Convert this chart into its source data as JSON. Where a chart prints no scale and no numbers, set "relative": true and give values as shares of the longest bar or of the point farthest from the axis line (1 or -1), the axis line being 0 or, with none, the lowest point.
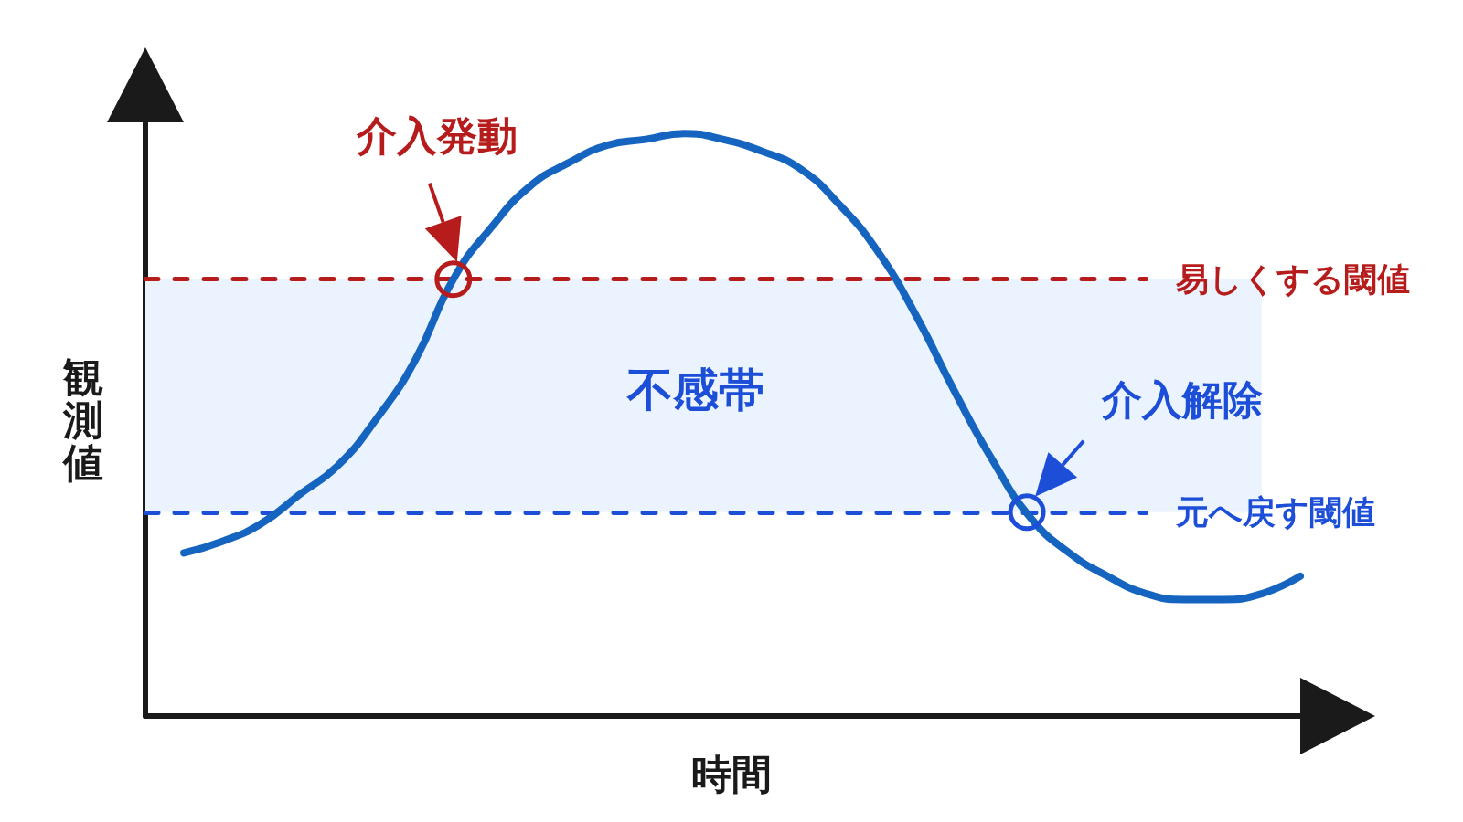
{
  "chart_data": {
    "type": "line",
    "relative": true,
    "xlabel": "時間",
    "ylabel": "観測値",
    "categories": [
      null,
      null,
      null,
      null,
      null,
      null,
      null,
      null,
      null,
      null,
      null,
      null,
      null,
      null,
      null,
      null,
      null,
      null,
      null,
      null,
      null,
      null,
      null,
      null,
      null,
      null,
      null,
      null,
      null,
      null,
      null
    ],
    "values": [
      null,
      0.28,
      0.3,
      0.33,
      0.38,
      0.43,
      0.51,
      0.61,
      0.75,
      0.84,
      0.91,
      0.95,
      0.98,
      0.99,
      1,
      0.99,
      0.97,
      0.94,
      0.88,
      0.8,
      0.69,
      0.56,
      0.44,
      0.34,
      0.28,
      0.24,
      0.21,
      0.2,
      0.2,
      0.21,
      0.24
    ],
    "color": "#1565c0",
    "ref_lines": [
      {
        "axis": "y",
        "value": 0.75,
        "label": "易しくする閾値",
        "color": "#b71c1c",
        "line_style": "dashed"
      },
      {
        "axis": "y",
        "value": 0.35,
        "label": "元へ戻す閾値",
        "color": "#1d4ed8",
        "line_style": "dashed"
      }
    ],
    "bands": [
      {
        "axis": "y",
        "from": 0.35,
        "to": 0.75,
        "label": "不感帯",
        "color": "#ebf4fe"
      }
    ],
    "annotations": [
      {
        "text": "介入発動",
        "y": 0.75
      },
      {
        "text": "介入解除",
        "y": 0.35
      }
    ]
  }
}
